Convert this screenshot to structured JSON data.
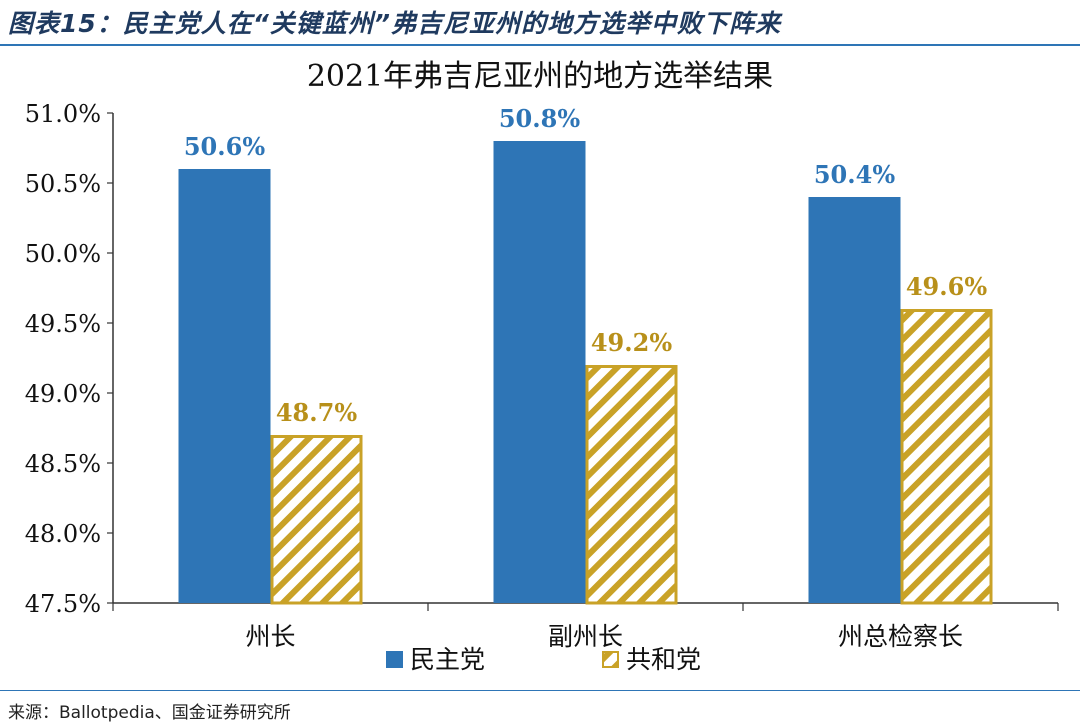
{
  "figure_caption": "图表15：民主党人在“关键蓝州”弗吉尼亚州的地方选举中败下阵来",
  "source_note": "来源：Ballotpedia、国金证券研究所",
  "colors": {
    "democrat": "#2e75b6",
    "republican": "#c9a227",
    "democrat_label": "#2e75b6",
    "republican_label": "#b8901a",
    "rule": "#2e75b6"
  },
  "chart_data": {
    "type": "bar",
    "title": "2021年弗吉尼亚州的地方选举结果",
    "categories": [
      "州长",
      "副州长",
      "州总检察长"
    ],
    "series": [
      {
        "name": "民主党",
        "values": [
          50.6,
          50.8,
          50.4
        ],
        "labels": [
          "50.6%",
          "50.8%",
          "50.4%"
        ],
        "pattern": "solid"
      },
      {
        "name": "共和党",
        "values": [
          48.7,
          49.2,
          49.6
        ],
        "labels": [
          "48.7%",
          "49.2%",
          "49.6%"
        ],
        "pattern": "diagonal-hatch"
      }
    ],
    "ylim": [
      47.5,
      51.0
    ],
    "yticks": [
      47.5,
      48.0,
      48.5,
      49.0,
      49.5,
      50.0,
      50.5,
      51.0
    ],
    "ytick_labels": [
      "47.5%",
      "48.0%",
      "48.5%",
      "49.0%",
      "49.5%",
      "50.0%",
      "50.5%",
      "51.0%"
    ],
    "xlabel": "",
    "ylabel": "",
    "grid": false,
    "legend_position": "bottom-center"
  }
}
